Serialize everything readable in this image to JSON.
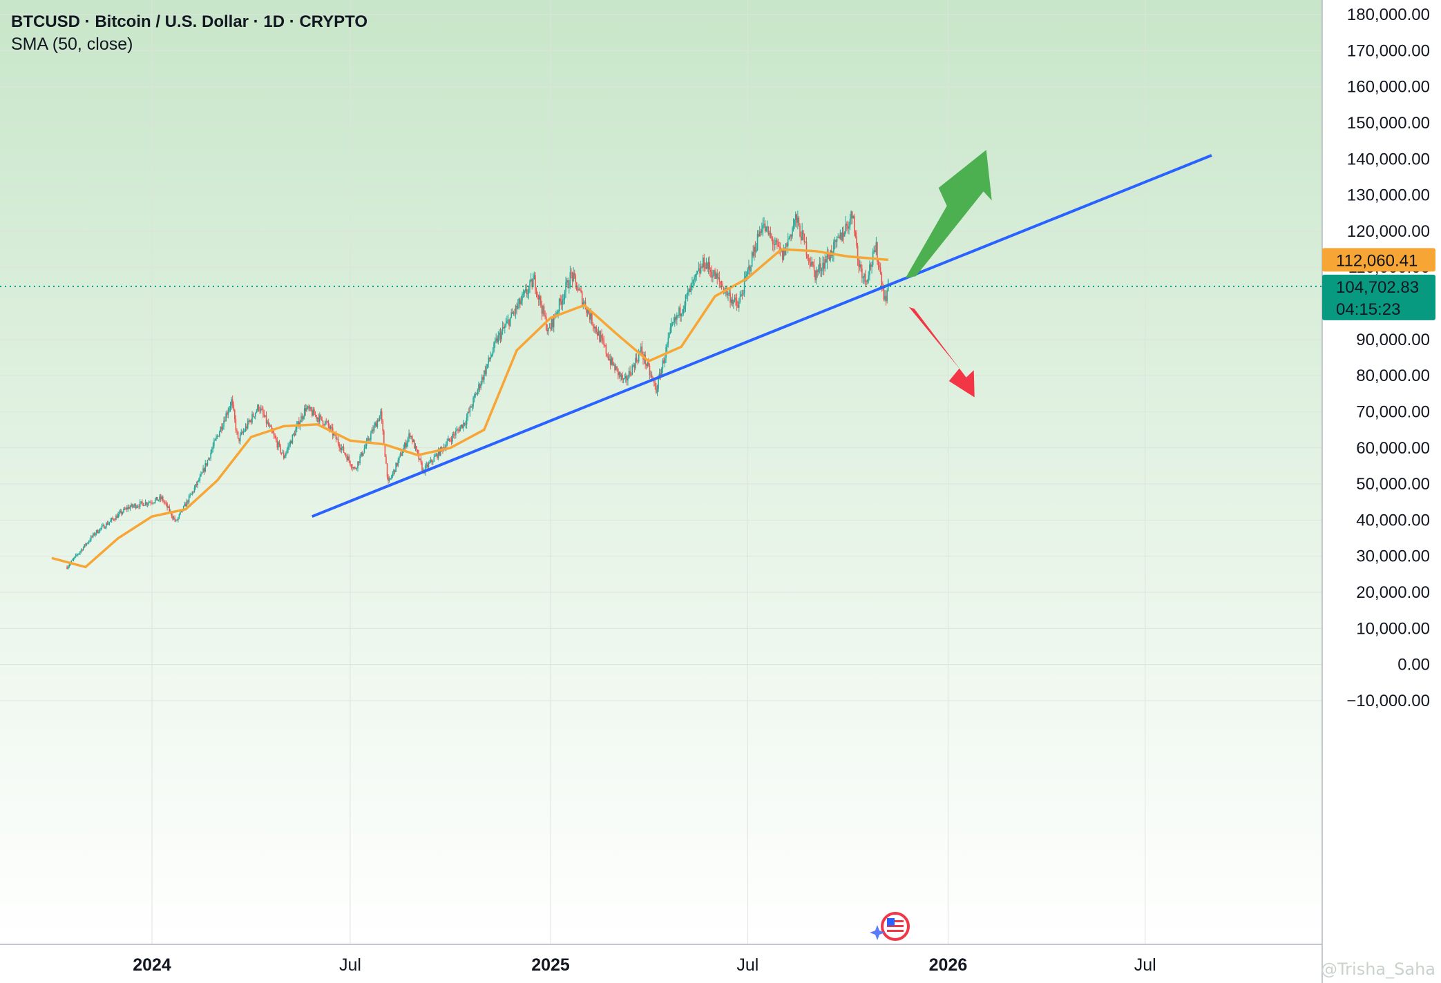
{
  "header": {
    "title": "BTCUSD · Bitcoin / U.S. Dollar · 1D · CRYPTO",
    "indicator": "SMA (50, close)"
  },
  "price_tags": {
    "sma_value": "112,060.41",
    "last_price": "104,702.83",
    "countdown": "04:15:23"
  },
  "watermark": "@Trisha_Saha",
  "colors": {
    "up": "#26a69a",
    "down": "#ef5350",
    "sma": "#f7a534",
    "trendline": "#2962ff",
    "arrow_up": "#4caf50",
    "arrow_down": "#f23645",
    "price_tag": "#089981",
    "background_top": "#c8e6c9",
    "background_bottom": "#ffffff"
  },
  "chart_data": {
    "type": "candlestick",
    "title": "BTCUSD · Bitcoin / U.S. Dollar · 1D · CRYPTO",
    "y_tick_labels": [
      "180,000.00",
      "170,000.00",
      "160,000.00",
      "150,000.00",
      "140,000.00",
      "130,000.00",
      "120,000.00",
      "110,000.00",
      "90,000.00",
      "80,000.00",
      "70,000.00",
      "60,000.00",
      "50,000.00",
      "40,000.00",
      "30,000.00",
      "20,000.00",
      "10,000.00",
      "0.00",
      "−10,000.00"
    ],
    "x_tick_labels": [
      "2024",
      "Jul",
      "2025",
      "Jul",
      "2026",
      "Jul"
    ],
    "ylim": [
      -10000,
      180000
    ],
    "grid": true,
    "close_path": [
      {
        "date": "2023-10-15",
        "price": 27000
      },
      {
        "date": "2023-11-10",
        "price": 36500
      },
      {
        "date": "2023-12-10",
        "price": 43500
      },
      {
        "date": "2024-01-10",
        "price": 46000
      },
      {
        "date": "2024-01-23",
        "price": 39500
      },
      {
        "date": "2024-02-15",
        "price": 52000
      },
      {
        "date": "2024-03-14",
        "price": 73000
      },
      {
        "date": "2024-03-20",
        "price": 62000
      },
      {
        "date": "2024-04-08",
        "price": 71500
      },
      {
        "date": "2024-05-01",
        "price": 57500
      },
      {
        "date": "2024-05-21",
        "price": 71000
      },
      {
        "date": "2024-06-10",
        "price": 66500
      },
      {
        "date": "2024-07-05",
        "price": 54000
      },
      {
        "date": "2024-07-29",
        "price": 69500
      },
      {
        "date": "2024-08-05",
        "price": 50000
      },
      {
        "date": "2024-08-25",
        "price": 64000
      },
      {
        "date": "2024-09-06",
        "price": 53500
      },
      {
        "date": "2024-10-15",
        "price": 67500
      },
      {
        "date": "2024-11-13",
        "price": 90000
      },
      {
        "date": "2024-12-17",
        "price": 106500
      },
      {
        "date": "2024-12-30",
        "price": 92000
      },
      {
        "date": "2025-01-20",
        "price": 108000
      },
      {
        "date": "2025-02-25",
        "price": 84000
      },
      {
        "date": "2025-03-10",
        "price": 78000
      },
      {
        "date": "2025-03-25",
        "price": 87000
      },
      {
        "date": "2025-04-08",
        "price": 76000
      },
      {
        "date": "2025-04-22",
        "price": 93000
      },
      {
        "date": "2025-05-22",
        "price": 111500
      },
      {
        "date": "2025-06-22",
        "price": 99000
      },
      {
        "date": "2025-07-14",
        "price": 122000
      },
      {
        "date": "2025-08-02",
        "price": 113000
      },
      {
        "date": "2025-08-14",
        "price": 123500
      },
      {
        "date": "2025-09-01",
        "price": 108000
      },
      {
        "date": "2025-09-20",
        "price": 116000
      },
      {
        "date": "2025-10-06",
        "price": 125000
      },
      {
        "date": "2025-10-10",
        "price": 112000
      },
      {
        "date": "2025-10-17",
        "price": 106500
      },
      {
        "date": "2025-10-27",
        "price": 115000
      },
      {
        "date": "2025-11-04",
        "price": 101000
      },
      {
        "date": "2025-11-07",
        "price": 104700
      }
    ],
    "sma_50": [
      {
        "date": "2023-10-01",
        "price": 29500
      },
      {
        "date": "2023-11-01",
        "price": 27000
      },
      {
        "date": "2023-12-01",
        "price": 35000
      },
      {
        "date": "2024-01-01",
        "price": 41000
      },
      {
        "date": "2024-02-01",
        "price": 43000
      },
      {
        "date": "2024-03-01",
        "price": 51000
      },
      {
        "date": "2024-04-01",
        "price": 63000
      },
      {
        "date": "2024-05-01",
        "price": 66000
      },
      {
        "date": "2024-06-01",
        "price": 66500
      },
      {
        "date": "2024-07-01",
        "price": 62000
      },
      {
        "date": "2024-08-01",
        "price": 61000
      },
      {
        "date": "2024-09-01",
        "price": 58000
      },
      {
        "date": "2024-10-01",
        "price": 60000
      },
      {
        "date": "2024-11-01",
        "price": 65000
      },
      {
        "date": "2024-12-01",
        "price": 87000
      },
      {
        "date": "2025-01-01",
        "price": 96000
      },
      {
        "date": "2025-02-01",
        "price": 99500
      },
      {
        "date": "2025-03-01",
        "price": 92000
      },
      {
        "date": "2025-04-01",
        "price": 84000
      },
      {
        "date": "2025-05-01",
        "price": 88000
      },
      {
        "date": "2025-06-01",
        "price": 102000
      },
      {
        "date": "2025-07-01",
        "price": 107000
      },
      {
        "date": "2025-08-01",
        "price": 115000
      },
      {
        "date": "2025-09-01",
        "price": 114500
      },
      {
        "date": "2025-10-01",
        "price": 113000
      },
      {
        "date": "2025-11-07",
        "price": 112060
      }
    ],
    "trendline": [
      {
        "date": "2024-05-27",
        "price": 41000
      },
      {
        "date": "2026-08-31",
        "price": 141000
      }
    ],
    "last_price": 104702.83,
    "sma_last": 112060.41
  }
}
